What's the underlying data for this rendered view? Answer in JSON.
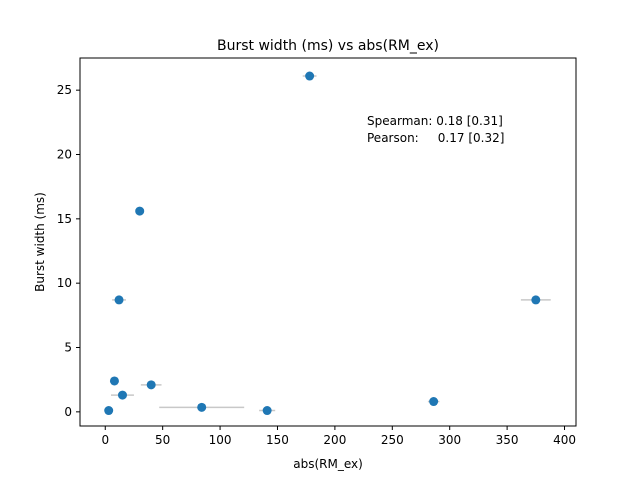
{
  "chart_data": {
    "type": "scatter",
    "title": "Burst width (ms) vs abs(RM_ex)",
    "xlabel": "abs(RM_ex)",
    "ylabel": "Burst width (ms)",
    "xlim": [
      -22,
      410
    ],
    "ylim": [
      -1.1,
      27.5
    ],
    "xticks": [
      0,
      50,
      100,
      150,
      200,
      250,
      300,
      350,
      400
    ],
    "yticks": [
      0,
      5,
      10,
      15,
      20,
      25
    ],
    "grid": false,
    "marker_color": "#1f77b4",
    "errorbar_color": "#c8c8c8",
    "points": [
      {
        "x": 3,
        "y": 0.1,
        "xerr": 2
      },
      {
        "x": 8,
        "y": 2.4,
        "xerr": 3
      },
      {
        "x": 12,
        "y": 8.7,
        "xerr": 6
      },
      {
        "x": 15,
        "y": 1.3,
        "xerr": 10
      },
      {
        "x": 30,
        "y": 15.6,
        "xerr": 3
      },
      {
        "x": 40,
        "y": 2.1,
        "xerr": 9
      },
      {
        "x": 84,
        "y": 0.35,
        "xerr": 37
      },
      {
        "x": 141,
        "y": 0.1,
        "xerr": 7
      },
      {
        "x": 178,
        "y": 26.1,
        "xerr": 6
      },
      {
        "x": 286,
        "y": 0.8,
        "xerr": 5
      },
      {
        "x": 375,
        "y": 8.7,
        "xerr": 13
      }
    ],
    "annotation_lines": [
      "Spearman: 0.18 [0.31]",
      "Pearson:     0.17 [0.32]"
    ]
  }
}
